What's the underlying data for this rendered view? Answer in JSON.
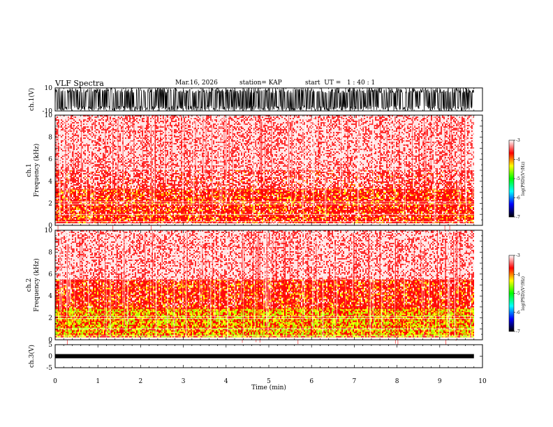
{
  "header": {
    "title": "VLF Spectra",
    "date": "Mar.16, 2026",
    "station": "station= KAP",
    "start": "start  UT =   1 : 40 : 1"
  },
  "chart_data": [
    {
      "type": "line",
      "panel": "ch1-waveform",
      "ylabel": "ch.1(V)",
      "ylim": [
        -10,
        10
      ],
      "ytick_labels": [
        "10",
        "-10"
      ],
      "xlim": [
        0,
        10
      ],
      "trace_extent_min": 9.8
    },
    {
      "type": "heatmap",
      "panel": "ch1-spectrogram",
      "ylabel_line1": "ch.1",
      "ylabel_line2": "Frequency  (kHz)",
      "ylim": [
        0,
        10
      ],
      "ytick_labels": [
        "0",
        "2",
        "4",
        "6",
        "8",
        "10"
      ],
      "xlim": [
        0,
        10
      ],
      "trace_extent_min": 9.8,
      "bands": [
        {
          "from_khz": 0.2,
          "to_khz": 3.3,
          "level": "high"
        },
        {
          "from_khz": 3.3,
          "to_khz": 5.0,
          "level": "medium"
        },
        {
          "from_khz": 5.0,
          "to_khz": 10.0,
          "level": "low"
        }
      ],
      "colorbar": {
        "label": "log(PSD)(V²/Hz)",
        "range": [
          -7,
          -3
        ],
        "tick_labels": [
          "-3",
          "-4",
          "-5",
          "-6",
          "-7"
        ],
        "colors": [
          "#ffffff",
          "#ff0000",
          "#ffff00",
          "#00ff00",
          "#00ffff",
          "#0000ff",
          "#000000"
        ]
      }
    },
    {
      "type": "heatmap",
      "panel": "ch2-spectrogram",
      "ylabel_line1": "ch.2",
      "ylabel_line2": "Frequency  (kHz)",
      "ylim": [
        0,
        10
      ],
      "ytick_labels": [
        "0",
        "2",
        "4",
        "6",
        "8",
        "10"
      ],
      "xlim": [
        0,
        10
      ],
      "trace_extent_min": 9.8,
      "bands": [
        {
          "from_khz": 0.3,
          "to_khz": 2.9,
          "level": "very-high"
        },
        {
          "from_khz": 2.9,
          "to_khz": 5.5,
          "level": "high"
        },
        {
          "from_khz": 5.5,
          "to_khz": 10.0,
          "level": "low"
        }
      ],
      "colorbar": {
        "label": "log(PSD)(V²/Hz)",
        "range": [
          -7,
          -3
        ],
        "tick_labels": [
          "-3",
          "-4",
          "-5",
          "-6",
          "-7"
        ],
        "colors": [
          "#ffffff",
          "#ff0000",
          "#ffff00",
          "#00ff00",
          "#00ffff",
          "#0000ff",
          "#000000"
        ]
      }
    },
    {
      "type": "line",
      "panel": "ch3-waveform",
      "ylabel": "ch.3(V)",
      "ylim": [
        -5,
        5
      ],
      "ytick_labels": [
        "5",
        "0",
        "-5"
      ],
      "xlim": [
        0,
        10
      ],
      "trace_level_v": 0,
      "trace_extent_min": 9.8,
      "xlabel": "Time  (min)",
      "xtick_labels": [
        "0",
        "1",
        "2",
        "3",
        "4",
        "5",
        "6",
        "7",
        "8",
        "9",
        "10"
      ]
    }
  ]
}
